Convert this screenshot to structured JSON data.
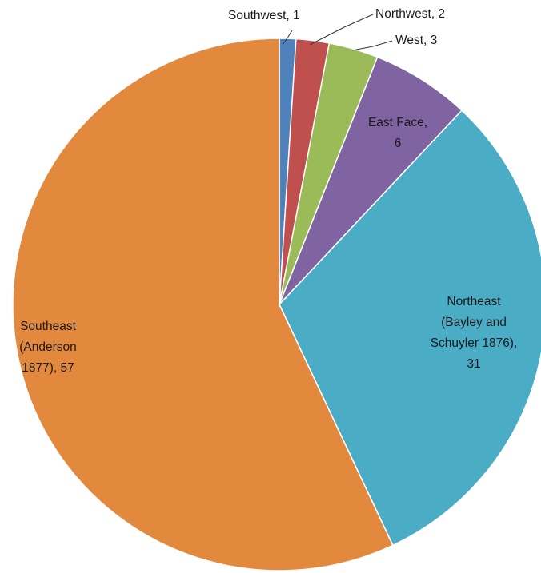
{
  "chart_data": {
    "type": "pie",
    "start_angle_deg": 0,
    "direction": "clockwise",
    "slices": [
      {
        "category": "Southwest",
        "value": 1,
        "color": "#4f81bd",
        "label_lines": [
          "Southwest, 1"
        ]
      },
      {
        "category": "Northwest",
        "value": 2,
        "color": "#c0504d",
        "label_lines": [
          "Northwest, 2"
        ]
      },
      {
        "category": "West",
        "value": 3,
        "color": "#9bbb59",
        "label_lines": [
          "West, 3"
        ]
      },
      {
        "category": "East Face",
        "value": 6,
        "color": "#8064a2",
        "label_lines": [
          "East Face,",
          "6"
        ]
      },
      {
        "category": "Northeast (Bayley and Schuyler 1876)",
        "value": 31,
        "color": "#4bacc6",
        "label_lines": [
          "Northeast",
          "(Bayley and",
          "Schuyler 1876),",
          "31"
        ]
      },
      {
        "category": "Southeast (Anderson 1877)",
        "value": 57,
        "color": "#e3893e",
        "label_lines": [
          "Southeast",
          "(Anderson",
          "1877), 57"
        ]
      }
    ],
    "legend": "none",
    "data_labels": "category, value"
  }
}
